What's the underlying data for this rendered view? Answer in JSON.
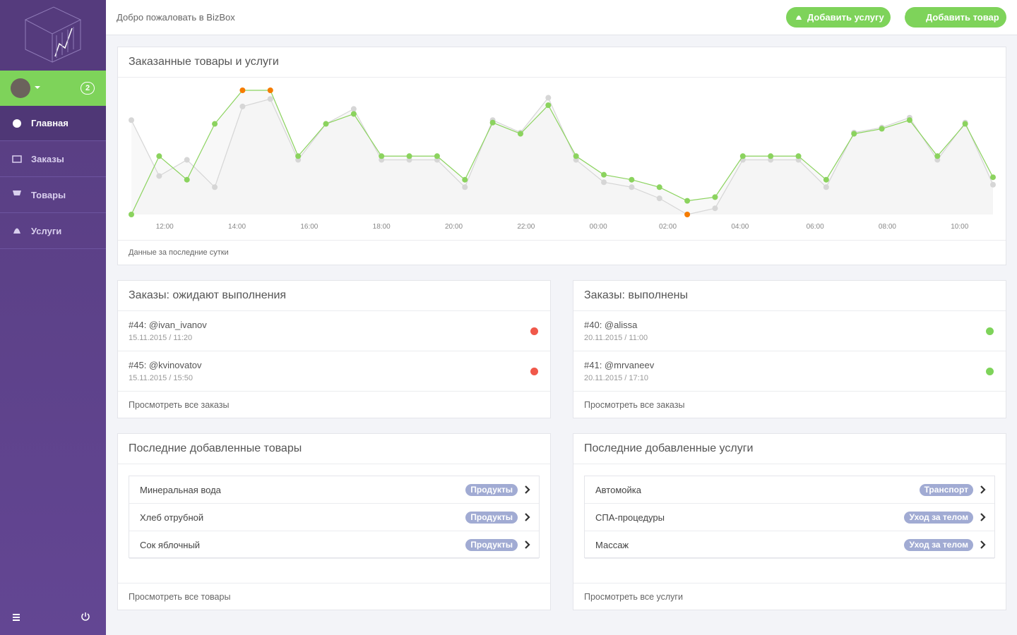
{
  "sidebar": {
    "badge": "2",
    "menu": [
      "Главная",
      "Заказы",
      "Товары",
      "Услуги"
    ]
  },
  "header": {
    "welcome": "Добро пожаловать в BizBox",
    "buttons": [
      "Добавить услугу",
      "Добавить товар"
    ]
  },
  "chart_panel": {
    "title": "Заказанные товары и услуги",
    "footer": "Данные за последние сутки"
  },
  "chart_data": {
    "type": "line",
    "highlight_color": "#f57c00",
    "x": [
      0,
      1,
      2,
      3,
      4,
      5,
      6,
      7,
      8,
      9,
      10,
      11,
      12,
      13,
      14,
      15,
      16,
      17,
      18,
      19,
      20,
      21,
      22,
      23,
      24,
      25,
      26,
      27,
      28,
      29,
      30,
      31
    ],
    "xlim": [
      0,
      31
    ],
    "ylim": [
      0,
      100
    ],
    "xticks": [
      {
        "value": 1.2,
        "label": "12:00"
      },
      {
        "value": 3.8,
        "label": "14:00"
      },
      {
        "value": 6.4,
        "label": "16:00"
      },
      {
        "value": 9,
        "label": "18:00"
      },
      {
        "value": 11.6,
        "label": "20:00"
      },
      {
        "value": 14.2,
        "label": "22:00"
      },
      {
        "value": 16.8,
        "label": "00:00"
      },
      {
        "value": 19.3,
        "label": "02:00"
      },
      {
        "value": 21.9,
        "label": "04:00"
      },
      {
        "value": 24.6,
        "label": "06:00"
      },
      {
        "value": 27.2,
        "label": "08:00"
      },
      {
        "value": 29.8,
        "label": "10:00"
      }
    ],
    "series": [
      {
        "color": "#d6d6d6",
        "highlight": "min",
        "values": [
          76,
          31,
          44,
          22,
          87,
          93,
          44,
          73,
          85,
          44,
          44,
          44,
          22,
          76,
          66,
          94,
          44,
          26,
          22,
          13,
          0,
          5,
          44,
          44,
          44,
          22,
          66,
          70,
          78,
          44,
          74,
          24
        ]
      },
      {
        "color": "#8bd35e",
        "highlight": "max",
        "values": [
          0,
          47,
          28,
          73,
          100,
          100,
          47,
          73,
          81,
          47,
          47,
          47,
          28,
          74,
          65,
          88,
          47,
          32,
          28,
          22,
          11,
          14,
          47,
          47,
          47,
          28,
          65,
          69,
          76,
          47,
          73,
          30
        ]
      }
    ]
  },
  "orders_pending": {
    "title": "Заказы: ожидают выполнения",
    "status_color": "#f0584a",
    "items": [
      {
        "title": "#44: @ivan_ivanov",
        "date": "15.11.2015 / 11:20"
      },
      {
        "title": "#45: @kvinovatov",
        "date": "15.11.2015 / 15:50"
      }
    ],
    "footer": "Просмотреть все заказы"
  },
  "orders_done": {
    "title": "Заказы: выполнены",
    "status_color": "#7ed35a",
    "items": [
      {
        "title": "#40: @alissa",
        "date": "20.11.2015 / 11:00"
      },
      {
        "title": "#41: @mrvaneev",
        "date": "20.11.2015 / 17:10"
      }
    ],
    "footer": "Просмотреть все заказы"
  },
  "products": {
    "title": "Последние добавленные товары",
    "items": [
      {
        "name": "Минеральная вода",
        "tag": "Продукты"
      },
      {
        "name": "Хлеб отрубной",
        "tag": "Продукты"
      },
      {
        "name": "Сок яблочный",
        "tag": "Продукты"
      }
    ],
    "footer": "Просмотреть все товары"
  },
  "services": {
    "title": "Последние добавленные услуги",
    "items": [
      {
        "name": "Автомойка",
        "tag": "Транспорт"
      },
      {
        "name": "СПА-процедуры",
        "tag": "Уход за телом"
      },
      {
        "name": "Массаж",
        "tag": "Уход за телом"
      }
    ],
    "footer": "Просмотреть все услуги"
  }
}
